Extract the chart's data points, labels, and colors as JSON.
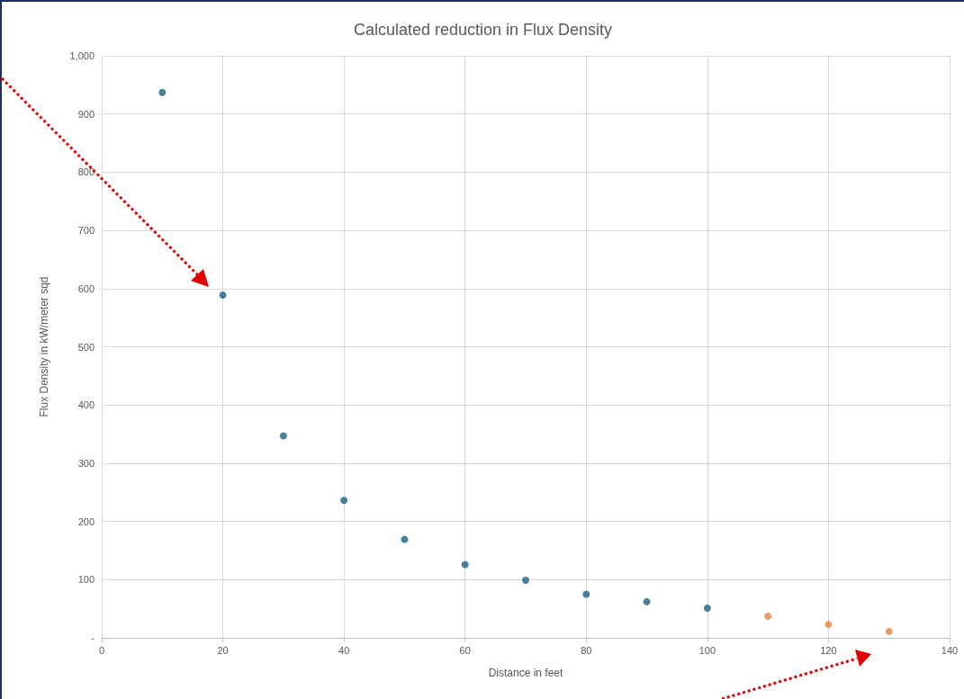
{
  "chart_data": {
    "type": "scatter",
    "title": "Calculated reduction in Flux Density",
    "xlabel": "Distance in feet",
    "ylabel": "Flux Density in kW/meter sqd",
    "series": [
      {
        "color": "#1a5f7f",
        "x": [
          10,
          20,
          30,
          40,
          50,
          60,
          70,
          80,
          90,
          100
        ],
        "values": [
          937,
          589,
          347,
          236,
          169,
          126,
          99,
          75,
          62,
          51
        ]
      },
      {
        "color": "#e97f3c",
        "x": [
          110,
          120,
          130
        ],
        "values": [
          37,
          23,
          11
        ]
      }
    ],
    "xlim": [
      0,
      140
    ],
    "xticks": [
      0,
      20,
      40,
      60,
      80,
      100,
      120,
      140
    ],
    "ylim": [
      0,
      1000
    ],
    "yticks": [
      {
        "value": 0,
        "label": "-"
      },
      100,
      200,
      300,
      400,
      500,
      600,
      700,
      800,
      900,
      {
        "value": 1000,
        "label": "1,000"
      }
    ],
    "grid": true,
    "marker": "circle"
  }
}
